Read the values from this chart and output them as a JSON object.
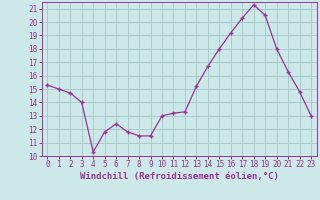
{
  "x": [
    0,
    1,
    2,
    3,
    4,
    5,
    6,
    7,
    8,
    9,
    10,
    11,
    12,
    13,
    14,
    15,
    16,
    17,
    18,
    19,
    20,
    21,
    22,
    23
  ],
  "y": [
    15.3,
    15.0,
    14.7,
    14.0,
    10.3,
    11.8,
    12.4,
    11.8,
    11.5,
    11.5,
    13.0,
    13.2,
    13.3,
    15.2,
    16.7,
    18.0,
    19.2,
    20.3,
    21.3,
    20.5,
    18.0,
    16.3,
    14.8,
    13.0
  ],
  "line_color": "#993399",
  "marker": "+",
  "marker_size": 3,
  "bg_color": "#cce8e8",
  "grid_color": "#aacccc",
  "xlabel": "Windchill (Refroidissement éolien,°C)",
  "ylim": [
    10,
    21.5
  ],
  "xlim": [
    -0.5,
    23.5
  ],
  "yticks": [
    10,
    11,
    12,
    13,
    14,
    15,
    16,
    17,
    18,
    19,
    20,
    21
  ],
  "xticks": [
    0,
    1,
    2,
    3,
    4,
    5,
    6,
    7,
    8,
    9,
    10,
    11,
    12,
    13,
    14,
    15,
    16,
    17,
    18,
    19,
    20,
    21,
    22,
    23
  ],
  "tick_color": "#993399",
  "label_color": "#993399",
  "axis_color": "#993399",
  "tick_fontsize": 5.5,
  "xlabel_fontsize": 6.5
}
